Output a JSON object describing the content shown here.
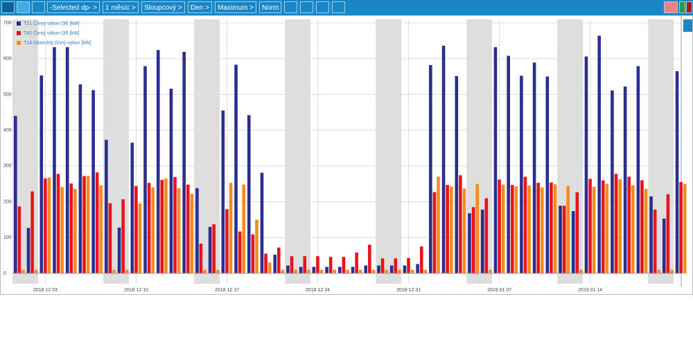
{
  "toolbar": {
    "items": [
      "-Selected dp-",
      "1 měsíc",
      "Sloupcový",
      "Den",
      "Maximum",
      "Norm"
    ]
  },
  "chart_data": {
    "type": "bar",
    "categories": [
      null,
      null,
      "2018 12 03",
      null,
      null,
      null,
      null,
      null,
      null,
      "2018 12 10",
      null,
      null,
      null,
      null,
      null,
      null,
      "2018 12 17",
      null,
      null,
      null,
      null,
      null,
      null,
      "2018 12 24",
      null,
      null,
      null,
      null,
      null,
      null,
      "2018 12 31",
      null,
      null,
      null,
      null,
      null,
      null,
      "2019 01 07",
      null,
      null,
      null,
      null,
      null,
      null,
      "2019 01 14",
      null,
      null,
      null,
      null,
      null,
      null,
      null
    ],
    "series": [
      {
        "name": "T21 Činný výkon (3f) [kW]",
        "color": "#2b2e8f",
        "values": [
          440,
          127,
          553,
          632,
          632,
          528,
          512,
          373,
          128,
          365,
          579,
          624,
          516,
          619,
          238,
          130,
          455,
          583,
          442,
          281,
          52,
          22,
          18,
          18,
          18,
          18,
          18,
          22,
          22,
          22,
          22,
          26,
          582,
          636,
          551,
          168,
          178,
          632,
          608,
          552,
          589,
          550,
          189,
          174,
          606,
          664,
          511,
          522,
          579,
          215,
          153,
          565
        ]
      },
      {
        "name": "T42 Činný výkon (3f) [kW]",
        "color": "#e8141c",
        "values": [
          187,
          229,
          265,
          278,
          251,
          272,
          282,
          196,
          207,
          244,
          253,
          261,
          269,
          248,
          83,
          137,
          179,
          117,
          109,
          55,
          72,
          48,
          48,
          48,
          46,
          46,
          58,
          80,
          42,
          42,
          43,
          75,
          227,
          247,
          274,
          185,
          210,
          262,
          247,
          270,
          253,
          254,
          189,
          227,
          264,
          260,
          278,
          270,
          260,
          178,
          221,
          255
        ]
      },
      {
        "name": "T14 Okamžitý činný výkon [kW]",
        "color": "#f58a1f",
        "values": [
          10,
          10,
          268,
          241,
          236,
          272,
          246,
          10,
          10,
          196,
          240,
          265,
          238,
          222,
          10,
          10,
          253,
          248,
          150,
          30,
          10,
          10,
          10,
          10,
          10,
          10,
          10,
          10,
          10,
          10,
          10,
          10,
          270,
          243,
          237,
          250,
          10,
          248,
          243,
          245,
          240,
          249,
          244,
          10,
          242,
          250,
          263,
          246,
          236,
          10,
          10,
          250
        ]
      }
    ],
    "ylim": [
      0,
      700
    ],
    "yticks": [
      0,
      100,
      200,
      300,
      400,
      500,
      600,
      700
    ],
    "grid": true,
    "legend": "top-left"
  }
}
